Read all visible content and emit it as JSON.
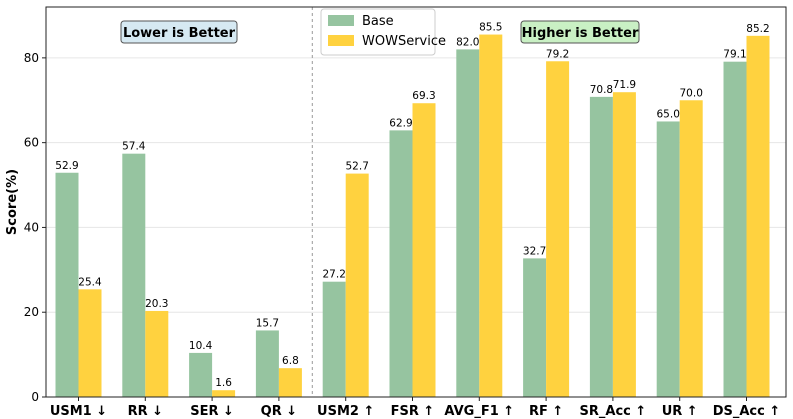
{
  "chart_data": {
    "type": "bar",
    "title": "",
    "xlabel": "",
    "ylabel": "Score(%)",
    "ylim": [
      0,
      92
    ],
    "yticks": [
      0,
      20,
      40,
      60,
      80
    ],
    "grid": "horizontal",
    "legend_position": "top-center",
    "categories": [
      "USM1 ↓",
      "RR ↓",
      "SER ↓",
      "QR ↓",
      "USM2 ↑",
      "FSR ↑",
      "AVG_F1 ↑",
      "RF ↑",
      "SR_Acc ↑",
      "UR ↑",
      "DS_Acc ↑"
    ],
    "series": [
      {
        "name": "Base",
        "color": "#96c4a0",
        "values": [
          52.9,
          57.4,
          10.4,
          15.7,
          27.2,
          62.9,
          82.0,
          32.7,
          70.8,
          65.0,
          79.1
        ]
      },
      {
        "name": "WOWService",
        "color": "#ffd23f",
        "values": [
          25.4,
          20.3,
          1.6,
          6.8,
          52.7,
          69.3,
          85.5,
          79.2,
          71.9,
          70.0,
          85.2
        ]
      }
    ],
    "divider_after_index": 3,
    "annotations": [
      {
        "text": "Lower is Better",
        "color": "#d6e9f2"
      },
      {
        "text": "Higher is Better",
        "color": "#c9f0c4"
      }
    ]
  }
}
